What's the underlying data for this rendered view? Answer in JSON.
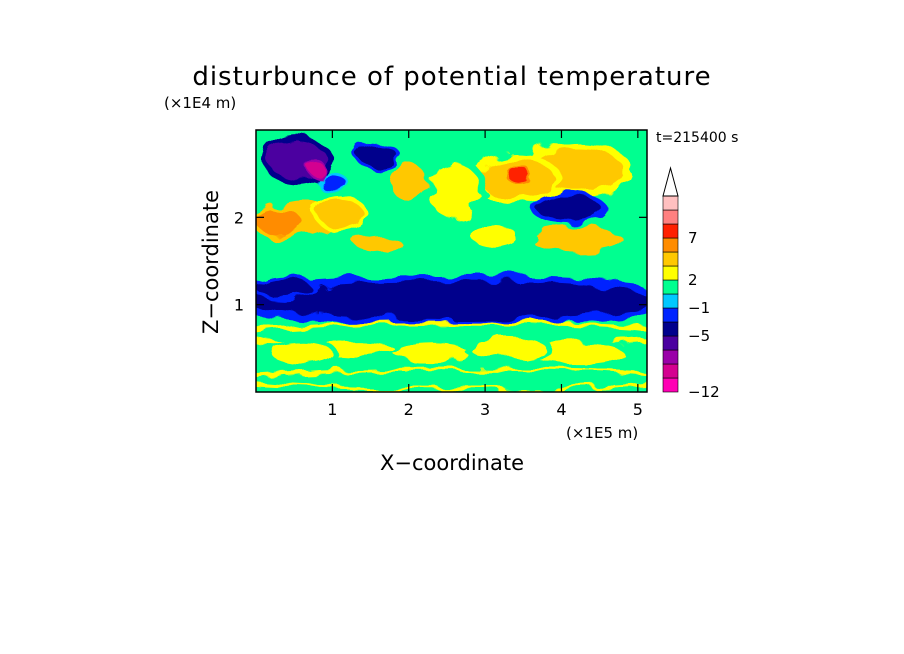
{
  "chart_data": {
    "type": "heatmap",
    "title": "disturbunce of potential temperature",
    "xlabel": "X−coordinate",
    "ylabel": "Z−coordinate",
    "x_unit": "(×1E5 m)",
    "y_unit": "(×1E4 m)",
    "time_label": "t=215400 s",
    "xlim": [
      0,
      5.12
    ],
    "ylim": [
      0,
      3.0
    ],
    "x_ticks": [
      1,
      2,
      3,
      4,
      5
    ],
    "y_ticks": [
      1,
      2
    ],
    "x_tick_labels": [
      "1",
      "2",
      "3",
      "4",
      "5"
    ],
    "y_tick_labels": [
      "1",
      "2"
    ],
    "colorbar": {
      "levels": [
        -12,
        -5,
        -1,
        2,
        7
      ],
      "level_labels": [
        "−12",
        "−5",
        "−1",
        "2",
        "7"
      ],
      "colors": [
        "#ff00b4",
        "#d40090",
        "#9a00a8",
        "#4b00a0",
        "#00008c",
        "#0024ff",
        "#00c8ff",
        "#00ff90",
        "#ffff00",
        "#ffc800",
        "#ff8c00",
        "#ff2000",
        "#ff8080",
        "#ffc0c0"
      ],
      "extend": "max"
    },
    "features": [
      {
        "x": 0.55,
        "z": 2.65,
        "rx": 0.38,
        "rz": 0.22,
        "value": -6
      },
      {
        "x": 0.8,
        "z": 2.55,
        "rx": 0.1,
        "rz": 0.08,
        "value": -9
      },
      {
        "x": 1.6,
        "z": 2.7,
        "rx": 0.25,
        "rz": 0.12,
        "value": -5
      },
      {
        "x": 1.0,
        "z": 2.4,
        "rx": 0.18,
        "rz": 0.08,
        "value": -3
      },
      {
        "x": 0.3,
        "z": 1.95,
        "rx": 0.3,
        "rz": 0.14,
        "value": 5
      },
      {
        "x": 0.6,
        "z": 2.0,
        "rx": 0.4,
        "rz": 0.2,
        "value": 3
      },
      {
        "x": 1.1,
        "z": 2.05,
        "rx": 0.3,
        "rz": 0.15,
        "value": 4
      },
      {
        "x": 1.6,
        "z": 1.7,
        "rx": 0.3,
        "rz": 0.1,
        "value": 3
      },
      {
        "x": 2.0,
        "z": 2.4,
        "rx": 0.25,
        "rz": 0.2,
        "value": 3
      },
      {
        "x": 3.4,
        "z": 2.45,
        "rx": 0.5,
        "rz": 0.22,
        "value": 4
      },
      {
        "x": 3.45,
        "z": 2.48,
        "rx": 0.15,
        "rz": 0.08,
        "value": 7
      },
      {
        "x": 4.2,
        "z": 2.55,
        "rx": 0.6,
        "rz": 0.25,
        "value": 4
      },
      {
        "x": 4.1,
        "z": 2.1,
        "rx": 0.42,
        "rz": 0.14,
        "value": -5
      },
      {
        "x": 4.2,
        "z": 1.75,
        "rx": 0.6,
        "rz": 0.14,
        "value": 3
      },
      {
        "x": 2.6,
        "z": 2.3,
        "rx": 0.35,
        "rz": 0.3,
        "value": 2
      },
      {
        "x": 3.1,
        "z": 1.8,
        "rx": 0.3,
        "rz": 0.12,
        "value": 2
      },
      {
        "x": 0.35,
        "z": 1.2,
        "rx": 0.35,
        "rz": 0.12,
        "value": -5
      },
      {
        "x": 2.6,
        "z": 1.05,
        "rx": 2.7,
        "rz": 0.22,
        "value": -4
      },
      {
        "x": 2.6,
        "z": 0.65,
        "rx": 2.7,
        "rz": 0.12,
        "value": 0
      },
      {
        "x": 0.6,
        "z": 0.45,
        "rx": 0.4,
        "rz": 0.12,
        "value": 2
      },
      {
        "x": 1.3,
        "z": 0.5,
        "rx": 0.5,
        "rz": 0.1,
        "value": 2
      },
      {
        "x": 2.3,
        "z": 0.45,
        "rx": 0.5,
        "rz": 0.12,
        "value": 2
      },
      {
        "x": 3.3,
        "z": 0.5,
        "rx": 0.5,
        "rz": 0.12,
        "value": 2
      },
      {
        "x": 4.2,
        "z": 0.45,
        "rx": 0.6,
        "rz": 0.12,
        "value": 2
      },
      {
        "x": 2.6,
        "z": 0.15,
        "rx": 2.7,
        "rz": 0.1,
        "value": 0
      }
    ]
  }
}
